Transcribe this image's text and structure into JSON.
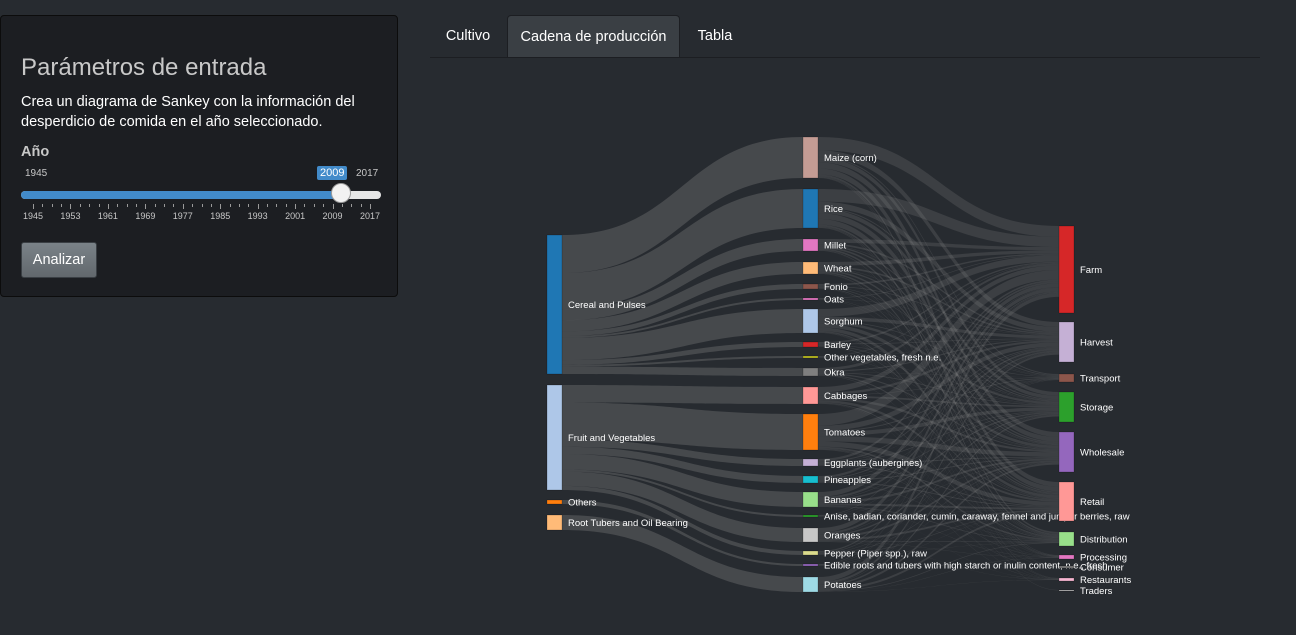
{
  "sidebar": {
    "title": "Parámetros de entrada",
    "description": "Crea un diagrama de Sankey con la información del desperdicio de comida en el año seleccionado.",
    "year_label": "Año",
    "slider": {
      "min_label": "1945",
      "max_label": "2017",
      "value_label": "2009",
      "min": 1945,
      "max": 2017,
      "value": 2009,
      "ticks": [
        "1945",
        "1953",
        "1961",
        "1969",
        "1977",
        "1985",
        "1993",
        "2001",
        "2009",
        "2017"
      ]
    },
    "button_label": "Analizar"
  },
  "tabs": [
    {
      "label": "Cultivo",
      "active": false
    },
    {
      "label": "Cadena de producción",
      "active": true
    },
    {
      "label": "Tabla",
      "active": false
    }
  ],
  "sankey": {
    "left_nodes": [
      {
        "label": "Cereal and Pulses",
        "color": "#1f77b4"
      },
      {
        "label": "Fruit and Vegetables",
        "color": "#aec7e8"
      },
      {
        "label": "Others",
        "color": "#ff7f0e"
      },
      {
        "label": "Root Tubers and Oil Bearing",
        "color": "#ffbb78"
      }
    ],
    "middle_nodes": [
      {
        "label": "Maize (corn)",
        "color": "#c49c94"
      },
      {
        "label": "Rice",
        "color": "#1f77b4"
      },
      {
        "label": "Millet",
        "color": "#e377c2"
      },
      {
        "label": "Wheat",
        "color": "#ffbb78"
      },
      {
        "label": "Fonio",
        "color": "#8c564b"
      },
      {
        "label": "Oats",
        "color": "#e377c2"
      },
      {
        "label": "Sorghum",
        "color": "#aec7e8"
      },
      {
        "label": "Barley",
        "color": "#d62728"
      },
      {
        "label": "Other vegetables, fresh n.e.",
        "color": "#bcbd22"
      },
      {
        "label": "Okra",
        "color": "#7f7f7f"
      },
      {
        "label": "Cabbages",
        "color": "#ff9896"
      },
      {
        "label": "Tomatoes",
        "color": "#ff7f0e"
      },
      {
        "label": "Eggplants (aubergines)",
        "color": "#c5b0d5"
      },
      {
        "label": "Pineapples",
        "color": "#17becf"
      },
      {
        "label": "Bananas",
        "color": "#98df8a"
      },
      {
        "label": "Anise, badian, coriander, cumin, caraway, fennel and juniper berries, raw",
        "color": "#2ca02c"
      },
      {
        "label": "Oranges",
        "color": "#c7c7c7"
      },
      {
        "label": "Pepper (Piper spp.), raw",
        "color": "#dbdb8d"
      },
      {
        "label": "Edible roots and tubers with high starch or inulin content, n.e., fresh",
        "color": "#9467bd"
      },
      {
        "label": "Potatoes",
        "color": "#9edae5"
      }
    ],
    "right_nodes": [
      {
        "label": "Farm",
        "color": "#d62728"
      },
      {
        "label": "Harvest",
        "color": "#c5b0d5"
      },
      {
        "label": "Transport",
        "color": "#8c564b"
      },
      {
        "label": "Storage",
        "color": "#2ca02c"
      },
      {
        "label": "Wholesale",
        "color": "#9467bd"
      },
      {
        "label": "Retail",
        "color": "#ff9896"
      },
      {
        "label": "Distribution",
        "color": "#98df8a"
      },
      {
        "label": "Processing",
        "color": "#e377c2"
      },
      {
        "label": "Consumer",
        "color": "#7f7f7f"
      },
      {
        "label": "Restaurants",
        "color": "#f7b6d2"
      },
      {
        "label": "Traders",
        "color": "#c7c7c7"
      }
    ]
  }
}
